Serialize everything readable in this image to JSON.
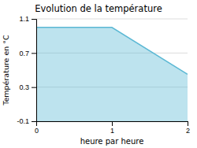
{
  "chart_data": {
    "type": "area",
    "title": "Evolution de la température",
    "xlabel": "heure par heure",
    "ylabel": "Température en °C",
    "x": [
      0,
      1,
      2
    ],
    "values": [
      1.0,
      1.0,
      0.45
    ],
    "color": "#5bb8d4",
    "xlim": [
      0,
      2
    ],
    "ylim": [
      -0.1,
      1.1
    ],
    "xticks": [
      0,
      1,
      2
    ],
    "yticks": [
      -0.1,
      0.3,
      0.7,
      1.1
    ],
    "grid": true
  }
}
